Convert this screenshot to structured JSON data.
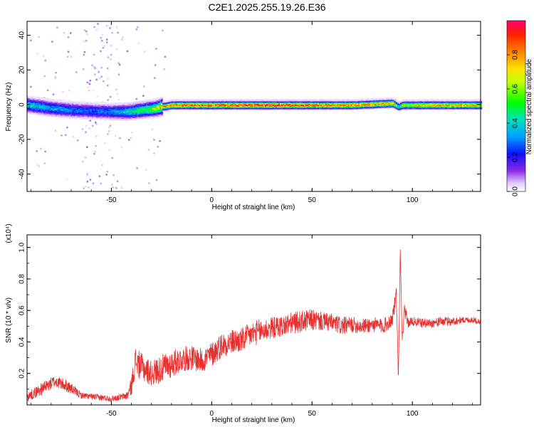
{
  "figure_title": "C2E1.2025.255.19.26.E36",
  "chart_data": [
    {
      "type": "heatmap",
      "xlabel": "Height of straight line (km)",
      "ylabel": "Frequency (Hz)",
      "xlim": [
        -92,
        134
      ],
      "ylim": [
        -50,
        48
      ],
      "xticks": [
        -50,
        0,
        50,
        100
      ],
      "yticks": [
        -40,
        -20,
        0,
        20,
        40
      ],
      "colorbar": {
        "label": "Normalized spectral amplitude",
        "range": [
          0,
          1
        ],
        "ticks": [
          "0.0",
          "0.2",
          "0.4",
          "0.6",
          "0.8"
        ],
        "tick_values": [
          0,
          0.2,
          0.4,
          0.6,
          0.8
        ]
      },
      "ridge": {
        "x": [
          -92,
          -80,
          -70,
          -60,
          -50,
          -42,
          -35,
          -28,
          -25,
          -20,
          0,
          20,
          50,
          70,
          90,
          93,
          95,
          110,
          134
        ],
        "freq": [
          0,
          -2,
          -3,
          -3.5,
          -4,
          -4,
          -3,
          -2,
          -1,
          0,
          0,
          0,
          0,
          0,
          1,
          -1,
          0,
          0,
          0
        ],
        "amplitude": [
          0.4,
          0.35,
          0.3,
          0.28,
          0.3,
          0.4,
          0.5,
          0.6,
          0.8,
          0.85,
          0.9,
          0.95,
          0.9,
          0.85,
          0.8,
          0.4,
          0.7,
          0.8,
          0.75
        ]
      }
    },
    {
      "type": "line",
      "xlabel": "Height of straight line (km)",
      "ylabel": "SNR (10 * v/v)",
      "y_multiplier": "(x10⁴)",
      "xlim": [
        -92,
        134
      ],
      "ylim": [
        0,
        1.08
      ],
      "xticks": [
        -50,
        0,
        50,
        100
      ],
      "yticks": [
        "0.2",
        "0.4",
        "0.6",
        "0.8",
        "1.0"
      ],
      "ytick_values": [
        0.2,
        0.4,
        0.6,
        0.8,
        1.0
      ],
      "series": [
        {
          "color": "#e83030",
          "x": [
            -92,
            -85,
            -78,
            -72,
            -65,
            -58,
            -50,
            -45,
            -42,
            -40,
            -38,
            -35,
            -30,
            -25,
            -20,
            -15,
            -10,
            -5,
            0,
            5,
            10,
            15,
            20,
            25,
            30,
            35,
            40,
            45,
            50,
            55,
            60,
            65,
            70,
            75,
            80,
            85,
            88,
            90,
            92,
            93,
            94,
            95,
            96,
            98,
            100,
            105,
            110,
            115,
            120,
            125,
            130,
            134
          ],
          "y": [
            0.05,
            0.1,
            0.15,
            0.12,
            0.06,
            0.05,
            0.04,
            0.05,
            0.06,
            0.12,
            0.28,
            0.24,
            0.2,
            0.23,
            0.26,
            0.29,
            0.3,
            0.28,
            0.32,
            0.38,
            0.4,
            0.41,
            0.45,
            0.47,
            0.49,
            0.5,
            0.52,
            0.53,
            0.54,
            0.53,
            0.52,
            0.5,
            0.51,
            0.5,
            0.51,
            0.5,
            0.52,
            0.55,
            0.7,
            0.2,
            0.98,
            0.4,
            0.6,
            0.52,
            0.53,
            0.52,
            0.52,
            0.53,
            0.53,
            0.54,
            0.54,
            0.53
          ],
          "noise": [
            0.03,
            0.04,
            0.04,
            0.04,
            0.02,
            0.02,
            0.02,
            0.02,
            0.03,
            0.06,
            0.09,
            0.09,
            0.08,
            0.09,
            0.09,
            0.08,
            0.08,
            0.08,
            0.08,
            0.08,
            0.08,
            0.08,
            0.08,
            0.08,
            0.07,
            0.07,
            0.07,
            0.07,
            0.07,
            0.06,
            0.06,
            0.06,
            0.05,
            0.05,
            0.05,
            0.05,
            0.05,
            0.05,
            0.05,
            0.05,
            0.05,
            0.05,
            0.05,
            0.03,
            0.03,
            0.03,
            0.03,
            0.03,
            0.03,
            0.02,
            0.02,
            0.02
          ]
        }
      ]
    }
  ]
}
